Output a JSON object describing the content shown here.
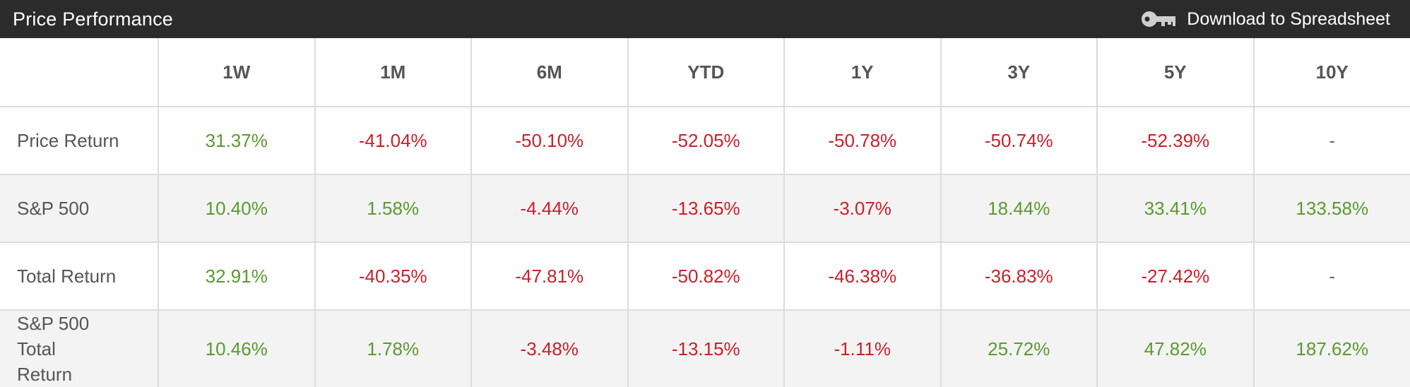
{
  "header": {
    "title": "Price Performance",
    "download_label": "Download to Spreadsheet",
    "download_icon": "key-icon"
  },
  "colors": {
    "positive": "#5a9a2f",
    "negative": "#cc1f2a",
    "header_bg": "#2b2b2b"
  },
  "table": {
    "columns": [
      "",
      "1W",
      "1M",
      "6M",
      "YTD",
      "1Y",
      "3Y",
      "5Y",
      "10Y"
    ],
    "rows": [
      {
        "label": "Price Return",
        "values": [
          "31.37%",
          "-41.04%",
          "-50.10%",
          "-52.05%",
          "-50.78%",
          "-50.74%",
          "-52.39%",
          "-"
        ]
      },
      {
        "label": "S&P 500",
        "values": [
          "10.40%",
          "1.58%",
          "-4.44%",
          "-13.65%",
          "-3.07%",
          "18.44%",
          "33.41%",
          "133.58%"
        ]
      },
      {
        "label": "Total Return",
        "values": [
          "32.91%",
          "-40.35%",
          "-47.81%",
          "-50.82%",
          "-46.38%",
          "-36.83%",
          "-27.42%",
          "-"
        ]
      },
      {
        "label": "S&P 500 Total Return",
        "values": [
          "10.46%",
          "1.78%",
          "-3.48%",
          "-13.15%",
          "-1.11%",
          "25.72%",
          "47.82%",
          "187.62%"
        ]
      }
    ]
  }
}
